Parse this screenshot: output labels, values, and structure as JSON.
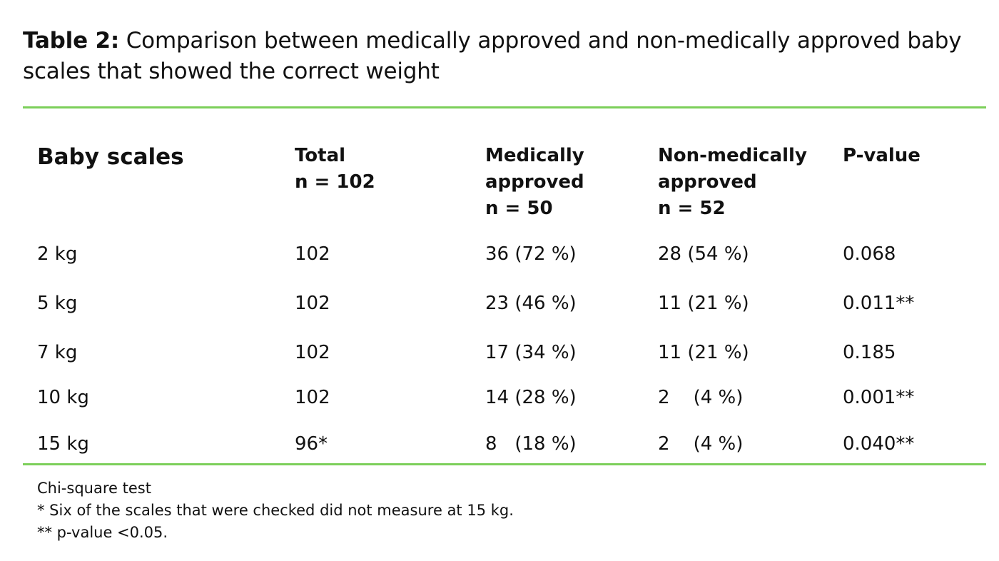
{
  "caption": {
    "label": "Table 2:",
    "text": " Comparison between medically approved and non-medically approved baby scales that showed the correct weight"
  },
  "colors": {
    "rule": "#7ccf5a",
    "text": "#111111"
  },
  "table": {
    "headers": [
      {
        "lines": [
          "Baby scales"
        ]
      },
      {
        "lines": [
          "Total",
          "n = 102"
        ]
      },
      {
        "lines": [
          "Medically",
          "approved",
          "n = 50"
        ]
      },
      {
        "lines": [
          "Non-medically",
          "approved",
          "n = 52"
        ]
      },
      {
        "lines": [
          "P-value"
        ]
      }
    ],
    "rows": [
      [
        "2 kg",
        "102",
        "36 (72 %)",
        "28 (54 %)",
        "0.068"
      ],
      [
        "5 kg",
        "102",
        "23 (46 %)",
        "11 (21 %)",
        "0.011**"
      ],
      [
        "7 kg",
        "102",
        "17 (34 %)",
        "11 (21 %)",
        "0.185"
      ],
      [
        "10 kg",
        "102",
        "14 (28 %)",
        "2    (4 %)",
        "0.001**"
      ],
      [
        "15 kg",
        "96*",
        "8   (18 %)",
        "2    (4 %)",
        "0.040**"
      ]
    ]
  },
  "notes": [
    "Chi-square test",
    "* Six of the scales that were checked did not measure at 15 kg.",
    "** p-value <0.05."
  ]
}
